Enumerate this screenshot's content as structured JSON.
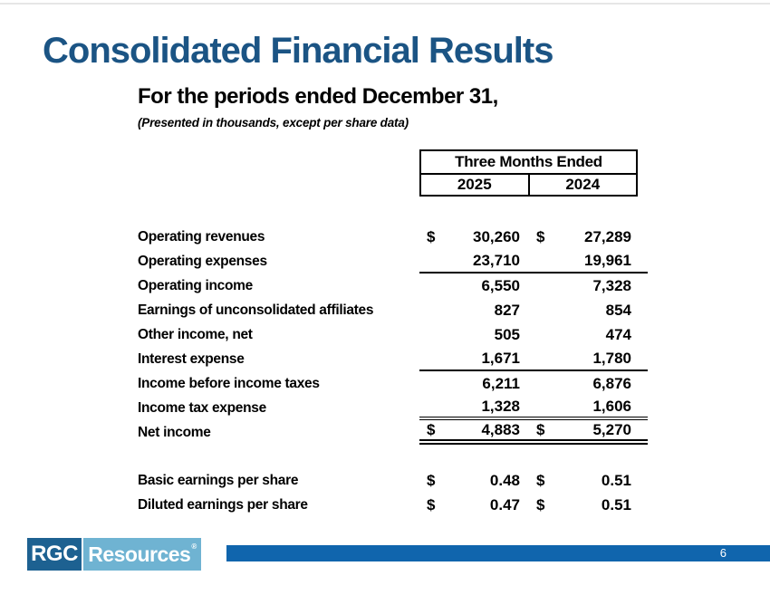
{
  "slide": {
    "title": "Consolidated Financial Results",
    "subtitle": "For the periods ended December 31,",
    "note": "(Presented in thousands, except per share data)"
  },
  "table": {
    "header": {
      "period": "Three Months Ended",
      "col1": "2025",
      "col2": "2024"
    },
    "rows": [
      {
        "label": "Operating revenues",
        "d1": "$",
        "v1": "30,260",
        "d2": "$",
        "v2": "27,289"
      },
      {
        "label": "Operating expenses",
        "v1": "23,710",
        "v2": "19,961"
      },
      {
        "label": "Operating income",
        "v1": "6,550",
        "v2": "7,328"
      },
      {
        "label": "Earnings of unconsolidated affiliates",
        "v1": "827",
        "v2": "854"
      },
      {
        "label": "Other income, net",
        "v1": "505",
        "v2": "474"
      },
      {
        "label": "Interest expense",
        "v1": "1,671",
        "v2": "1,780"
      },
      {
        "label": "Income before income taxes",
        "v1": "6,211",
        "v2": "6,876"
      },
      {
        "label": "Income tax expense",
        "v1": "1,328",
        "v2": "1,606"
      },
      {
        "label": "Net income",
        "d1": "$",
        "v1": "4,883",
        "d2": "$",
        "v2": "5,270"
      }
    ],
    "eps_rows": [
      {
        "label": "Basic earnings per share",
        "d1": "$",
        "v1": "0.48",
        "d2": "$",
        "v2": "0.51"
      },
      {
        "label": "Diluted earnings per share",
        "d1": "$",
        "v1": "0.47",
        "d2": "$",
        "v2": "0.51"
      }
    ]
  },
  "footer": {
    "logo_primary": "RGC",
    "logo_secondary": "Resources",
    "registered_mark": "®",
    "page_number": "6"
  },
  "colors": {
    "title_blue": "#1b5484",
    "footer_bar_blue": "#1065ad",
    "logo_dark_blue": "#1d6191",
    "logo_light_blue": "#6fb3d2"
  }
}
